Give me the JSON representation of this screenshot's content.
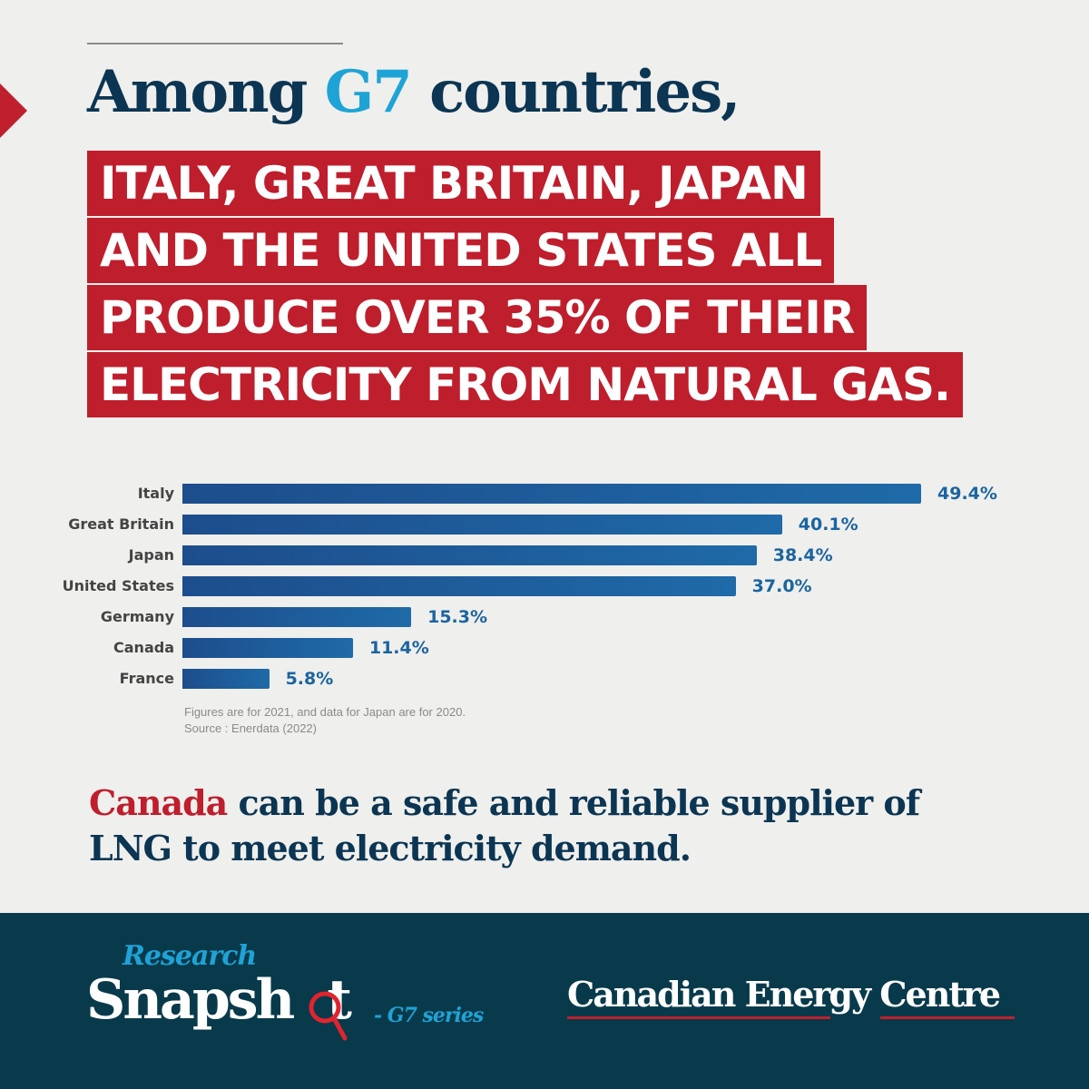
{
  "headline": {
    "pre": "Among ",
    "highlight": "G7",
    "post": " countries,"
  },
  "red_lines": [
    "ITALY, GREAT BRITAIN, JAPAN",
    "AND THE UNITED STATES ALL",
    "PRODUCE OVER 35% OF THEIR",
    "ELECTRICITY FROM NATURAL GAS."
  ],
  "chart_data": {
    "type": "bar",
    "orientation": "horizontal",
    "categories": [
      "Italy",
      "Great Britain",
      "Japan",
      "United States",
      "Germany",
      "Canada",
      "France"
    ],
    "values": [
      49.4,
      40.1,
      38.4,
      37.0,
      15.3,
      11.4,
      5.8
    ],
    "value_labels": [
      "49.4%",
      "40.1%",
      "38.4%",
      "37.0%",
      "15.3%",
      "11.4%",
      "5.8%"
    ],
    "unit": "%",
    "grid": false,
    "bar_color": "#1e5a9a",
    "notes": [
      "Figures are for 2021, and data for Japan are for 2020.",
      "Source : Enerdata (2022)"
    ]
  },
  "closing": {
    "highlight": "Canada",
    "rest_line1": " can be a safe and reliable supplier of",
    "line2": "LNG to meet electricity demand."
  },
  "footer": {
    "logo_research": "Research",
    "logo_snapshot": "Snapsh",
    "logo_snapshot_end": "t",
    "logo_series": "- G7 series",
    "brand": "Canadian Energy Centre"
  },
  "colors": {
    "navy": "#0b3553",
    "red": "#bf1e2d",
    "cyan": "#1ea3d6",
    "footer_bg": "#083a4b"
  }
}
